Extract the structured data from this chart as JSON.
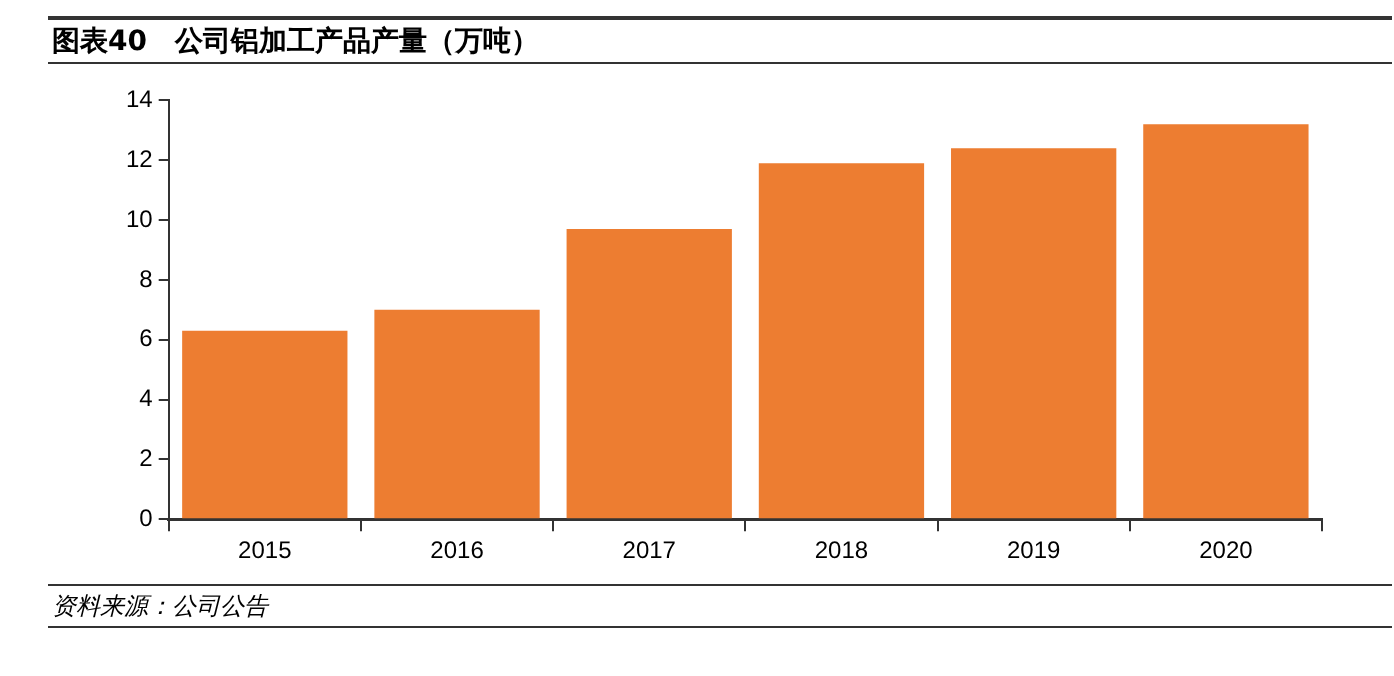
{
  "chart_data": {
    "type": "bar",
    "title": "图表40　公司铝加工产品产量（万吨）",
    "categories": [
      "2015",
      "2016",
      "2017",
      "2018",
      "2019",
      "2020"
    ],
    "values": [
      6.3,
      7.0,
      9.7,
      11.9,
      12.4,
      13.2
    ],
    "color": "#ed7d31",
    "ylim": [
      0,
      14
    ],
    "yticks": [
      0,
      2,
      4,
      6,
      8,
      10,
      12,
      14
    ],
    "grid": false,
    "legend": false,
    "annotations": [
      "资料来源：公司公告"
    ]
  }
}
